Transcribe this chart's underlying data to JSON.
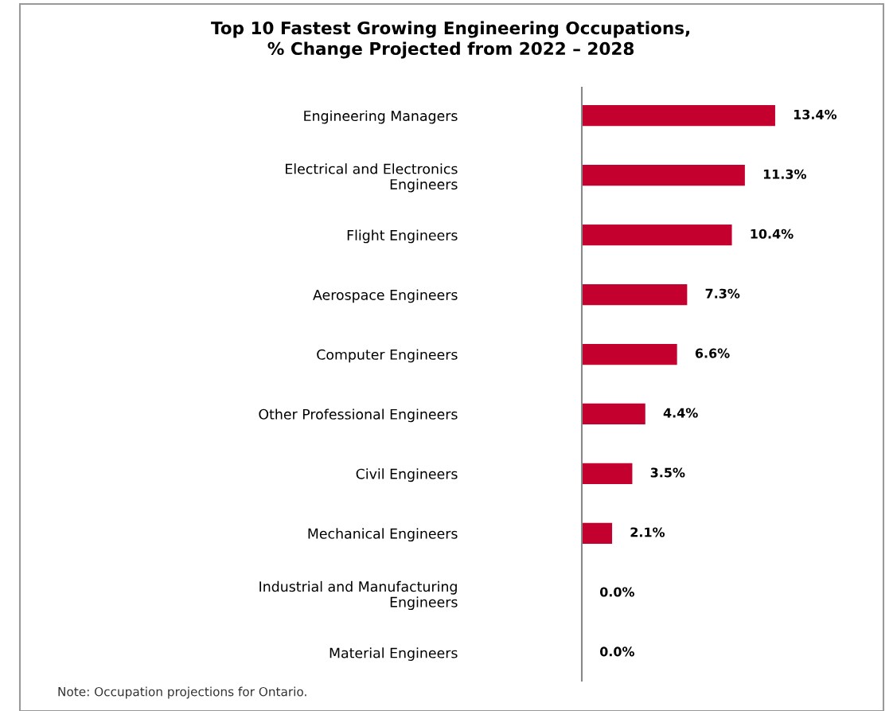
{
  "chart_data": {
    "type": "bar",
    "orientation": "horizontal",
    "title": "Top 10 Fastest Growing Engineering Occupations,\n% Change Projected from 2022 – 2028",
    "categories": [
      "Engineering Managers",
      "Electrical and Electronics\nEngineers",
      "Flight Engineers",
      "Aerospace Engineers",
      "Computer Engineers",
      "Other Professional Engineers",
      "Civil Engineers",
      "Mechanical Engineers",
      "Industrial and Manufacturing\nEngineers",
      "Material Engineers"
    ],
    "values": [
      13.4,
      11.3,
      10.4,
      7.3,
      6.6,
      4.4,
      3.5,
      2.1,
      0.0,
      0.0
    ],
    "value_labels": [
      "13.4%",
      "11.3%",
      "10.4%",
      "7.3%",
      "6.6%",
      "4.4%",
      "3.5%",
      "2.1%",
      "0.0%",
      "0.0%"
    ],
    "color": "#c4002f",
    "annotations": [
      "Note: Occupation projections for Ontario."
    ],
    "grid": false,
    "legend": false
  }
}
